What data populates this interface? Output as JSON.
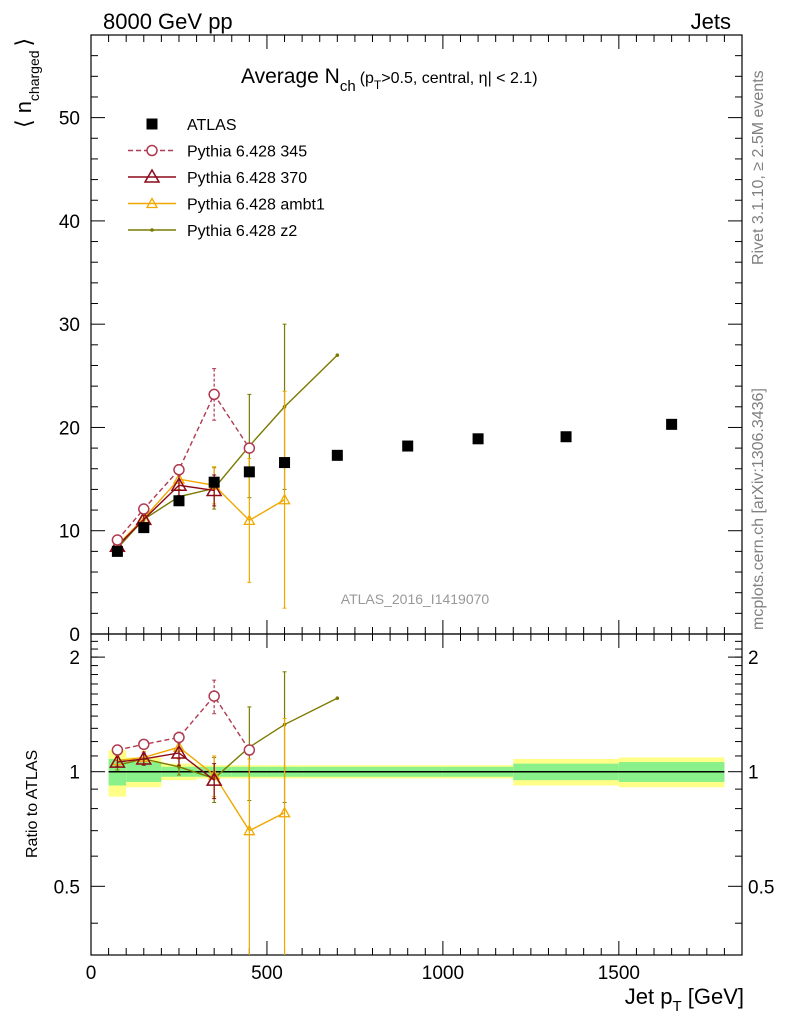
{
  "header": {
    "left": "8000 GeV pp",
    "right": "Jets"
  },
  "side_text": {
    "rivet": "Rivet 3.1.10, ≥ 2.5M events",
    "mcplots": "mcplots.cern.ch [arXiv:1306.3436]"
  },
  "colors": {
    "ATLAS": "#000000",
    "Pythia 6.428 345": "#b03a50",
    "Pythia 6.428 370": "#8b0a1a",
    "Pythia 6.428 ambt1": "#f0a800",
    "Pythia 6.428 z2": "#7a7a00",
    "band_inner": "#8af08a",
    "band_outer": "#ffff88"
  },
  "chart_data": [
    {
      "type": "scatter",
      "title": "Average N_ch (p_T>0.5, central, |η| < 2.1)",
      "title_parts": {
        "main": "Average N",
        "main_sub": "ch",
        "cond_a": "(p",
        "cond_sub": "T",
        "cond_b": ">0.5, central, ",
        "cond_eta": "η",
        "cond_c": "| < 2.1)"
      },
      "ylabel": "⟨ n_charged ⟩",
      "ylabel_parts": {
        "pre": "⟨ n",
        "sub": "charged",
        "post": "⟩"
      },
      "xlim": [
        0,
        1850
      ],
      "ylim": [
        0,
        58
      ],
      "yticks": [
        "0",
        "10",
        "20",
        "30",
        "40",
        "50"
      ],
      "watermark": "ATLAS_2016_I1419070",
      "legend_position": "top-left",
      "legend": [
        "ATLAS",
        "Pythia 6.428 345",
        "Pythia 6.428 370",
        "Pythia 6.428 ambt1",
        "Pythia 6.428 z2"
      ],
      "series": [
        {
          "name": "ATLAS",
          "marker": "square",
          "x": [
            75,
            150,
            250,
            350,
            450,
            550,
            700,
            900,
            1100,
            1350,
            1650
          ],
          "y": [
            8.0,
            10.3,
            12.9,
            14.7,
            15.7,
            16.6,
            17.3,
            18.2,
            18.9,
            19.1,
            20.3
          ]
        },
        {
          "name": "Pythia 6.428 345",
          "marker": "circle-open",
          "dashed": true,
          "x": [
            75,
            150,
            250,
            350,
            450
          ],
          "y": [
            9.1,
            12.1,
            15.9,
            23.2,
            18.0
          ],
          "yerr": [
            0.3,
            0.3,
            0.5,
            2.5,
            0
          ]
        },
        {
          "name": "Pythia 6.428 370",
          "marker": "triangle-open",
          "x": [
            75,
            150,
            250,
            350
          ],
          "y": [
            8.5,
            11.1,
            14.4,
            13.9
          ],
          "yerr": [
            0.3,
            0.4,
            1.0,
            1.5
          ]
        },
        {
          "name": "Pythia 6.428 ambt1",
          "marker": "triangle-open-small",
          "x": [
            75,
            150,
            250,
            350,
            450,
            550
          ],
          "y": [
            8.6,
            11.2,
            15.0,
            14.4,
            11.0,
            13.0
          ],
          "yerr": [
            0.3,
            0.4,
            1.0,
            1.8,
            6.0,
            10.5
          ]
        },
        {
          "name": "Pythia 6.428 z2",
          "marker": "dot",
          "x": [
            75,
            150,
            250,
            350,
            450,
            550,
            700
          ],
          "y": [
            8.3,
            11.1,
            13.3,
            14.1,
            18.2,
            22.0,
            27.0
          ],
          "yerr": [
            0.3,
            0.3,
            0.6,
            2.0,
            5.0,
            8.0,
            0
          ]
        }
      ]
    },
    {
      "type": "scatter",
      "ylabel": "Ratio to ATLAS",
      "xlabel": "Jet p_T [GeV]",
      "xlabel_parts": {
        "pre": "Jet p",
        "sub": "T",
        "post": " [GeV]"
      },
      "xlim": [
        0,
        1850
      ],
      "ylim": [
        0.33,
        2.3
      ],
      "yticks": [
        "0.5",
        "1",
        "2"
      ],
      "xticks": [
        "0",
        "500",
        "1000",
        "1500"
      ],
      "reference_band": {
        "bins": [
          [
            50,
            100
          ],
          [
            100,
            200
          ],
          [
            200,
            300
          ],
          [
            300,
            400
          ],
          [
            400,
            500
          ],
          [
            500,
            600
          ],
          [
            600,
            800
          ],
          [
            800,
            1000
          ],
          [
            1000,
            1200
          ],
          [
            1200,
            1500
          ],
          [
            1500,
            1800
          ]
        ],
        "inner": [
          0.08,
          0.06,
          0.03,
          0.03,
          0.03,
          0.03,
          0.03,
          0.03,
          0.03,
          0.05,
          0.06
        ],
        "outer": [
          0.14,
          0.09,
          0.05,
          0.04,
          0.04,
          0.04,
          0.04,
          0.04,
          0.04,
          0.08,
          0.09
        ]
      },
      "series": [
        {
          "name": "Pythia 6.428 345",
          "x": [
            75,
            150,
            250,
            350,
            450
          ],
          "y": [
            1.14,
            1.18,
            1.23,
            1.58,
            1.14
          ],
          "yerr": [
            0.03,
            0.03,
            0.04,
            0.16,
            0
          ]
        },
        {
          "name": "Pythia 6.428 370",
          "x": [
            75,
            150,
            250,
            350
          ],
          "y": [
            1.06,
            1.08,
            1.12,
            0.95
          ],
          "yerr": [
            0.03,
            0.04,
            0.08,
            0.1
          ]
        },
        {
          "name": "Pythia 6.428 ambt1",
          "x": [
            75,
            150,
            250,
            350,
            450,
            550
          ],
          "y": [
            1.07,
            1.09,
            1.16,
            0.98,
            0.7,
            0.78
          ],
          "yerr": [
            0.03,
            0.04,
            0.08,
            0.12,
            0.38,
            0.6
          ]
        },
        {
          "name": "Pythia 6.428 z2",
          "x": [
            75,
            150,
            250,
            350,
            450,
            550,
            700
          ],
          "y": [
            1.04,
            1.08,
            1.03,
            0.96,
            1.16,
            1.33,
            1.56
          ],
          "yerr": [
            0.03,
            0.03,
            0.05,
            0.13,
            0.32,
            0.5,
            0
          ]
        }
      ]
    }
  ]
}
